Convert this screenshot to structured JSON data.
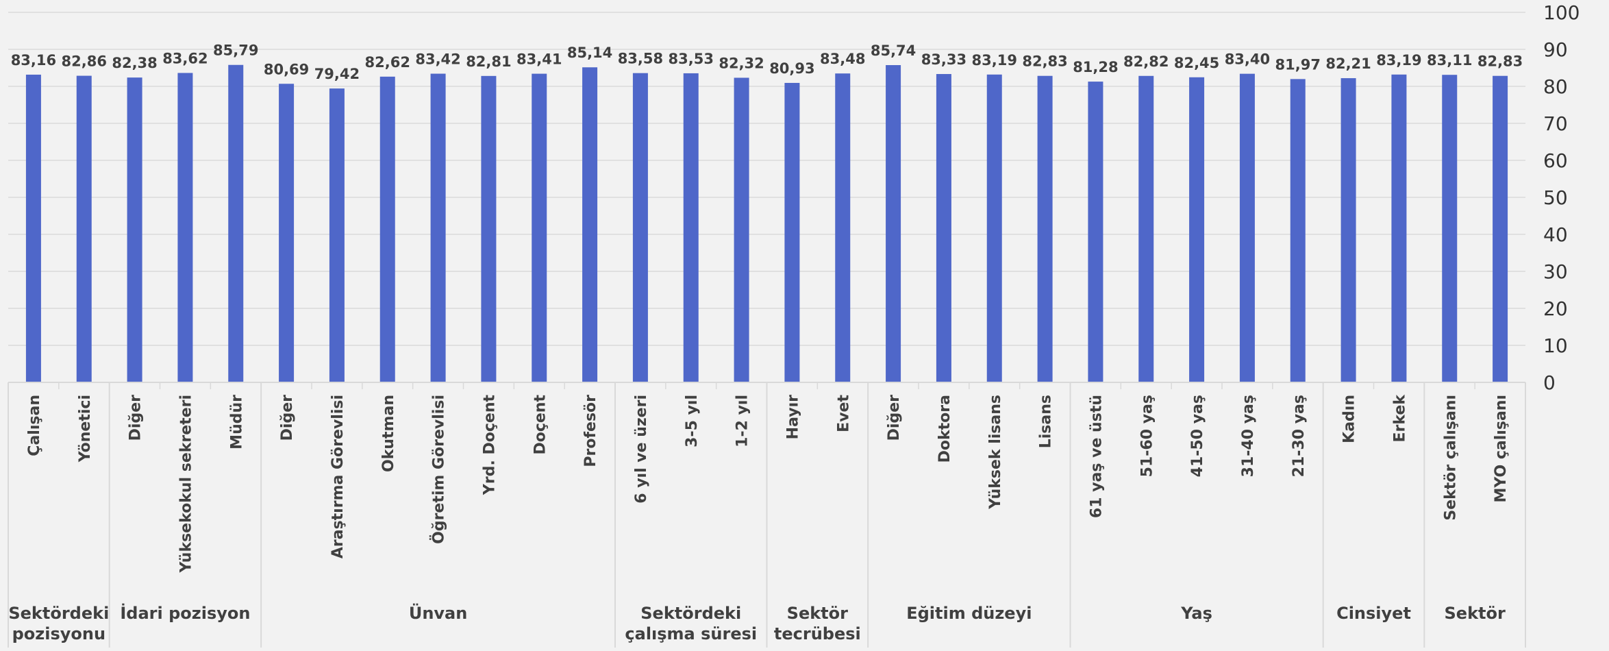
{
  "chart_data": {
    "type": "bar",
    "title": "",
    "xlabel": "",
    "ylabel": "",
    "ylim": [
      0,
      100
    ],
    "yticks": [
      0,
      10,
      20,
      30,
      40,
      50,
      60,
      70,
      80,
      90,
      100
    ],
    "y_axis_side": "right",
    "grid": true,
    "legend": "none",
    "bar_color": "#4f67c9",
    "grid_color": "#d9d9d9",
    "categories": [
      "Çalışan",
      "Yönetici",
      "Diğer",
      "Yüksekokul sekreteri",
      "Müdür",
      "Diğer",
      "Araştırma Görevlisi",
      "Okutman",
      "Öğretim Görevlisi",
      "Yrd. Doçent",
      "Doçent",
      "Profesör",
      "6 yıl ve üzeri",
      "3-5 yıl",
      "1-2 yıl",
      "Hayır",
      "Evet",
      "Diğer",
      "Doktora",
      "Yüksek lisans",
      "Lisans",
      "61 yaş ve üstü",
      "51-60 yaş",
      "41-50 yaş",
      "31-40 yaş",
      "21-30 yaş",
      "Kadın",
      "Erkek",
      "Sektör çalışanı",
      "MYO çalışanı"
    ],
    "values": [
      83.16,
      82.86,
      82.38,
      83.62,
      85.79,
      80.69,
      79.42,
      82.62,
      83.42,
      82.81,
      83.41,
      85.14,
      83.58,
      83.53,
      82.32,
      80.93,
      83.48,
      85.74,
      83.33,
      83.19,
      82.83,
      81.28,
      82.82,
      82.45,
      83.4,
      81.97,
      82.21,
      83.19,
      83.11,
      82.83
    ],
    "value_labels": [
      "83,16",
      "82,86",
      "82,38",
      "83,62",
      "85,79",
      "80,69",
      "79,42",
      "82,62",
      "83,42",
      "82,81",
      "83,41",
      "85,14",
      "83,58",
      "83,53",
      "82,32",
      "80,93",
      "83,48",
      "85,74",
      "83,33",
      "83,19",
      "82,83",
      "81,28",
      "82,82",
      "82,45",
      "83,40",
      "81,97",
      "82,21",
      "83,19",
      "83,11",
      "82,83"
    ],
    "groups": [
      {
        "lines": [
          "Sektördeki",
          "pozisyonu"
        ],
        "count": 2
      },
      {
        "lines": [
          "İdari pozisyon"
        ],
        "count": 3
      },
      {
        "lines": [
          "Ünvan"
        ],
        "count": 7
      },
      {
        "lines": [
          "Sektördeki",
          "çalışma süresi"
        ],
        "count": 3
      },
      {
        "lines": [
          "Sektör",
          "tecrübesi"
        ],
        "count": 2
      },
      {
        "lines": [
          "Eğitim düzeyi"
        ],
        "count": 4
      },
      {
        "lines": [
          "Yaş"
        ],
        "count": 5
      },
      {
        "lines": [
          "Cinsiyet"
        ],
        "count": 2
      },
      {
        "lines": [
          "Sektör"
        ],
        "count": 2
      }
    ]
  }
}
